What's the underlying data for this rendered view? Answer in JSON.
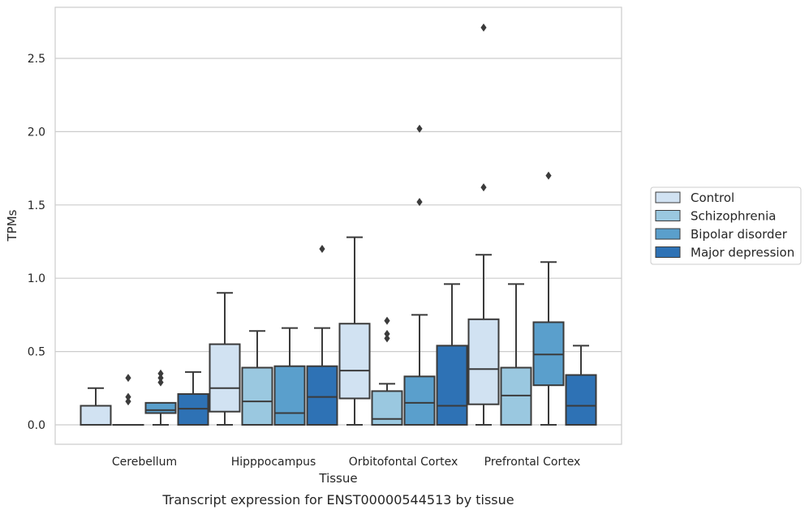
{
  "caption": "Transcript expression for ENST00000544513 by tissue",
  "chart_data": {
    "type": "box",
    "xlabel": "Tissue",
    "ylabel": "TPMs",
    "ylim": [
      -0.13,
      2.86
    ],
    "yticks": [
      0.0,
      0.5,
      1.0,
      1.5,
      2.0,
      2.5
    ],
    "ytick_labels": [
      "0.0",
      "0.5",
      "1.0",
      "1.5",
      "2.0",
      "2.5"
    ],
    "grid": "horizontal",
    "legend_position": "right",
    "categories": [
      "Cerebellum",
      "Hipppocampus",
      "Orbitofontal Cortex",
      "Prefrontal Cortex"
    ],
    "series": [
      {
        "name": "Control",
        "color": "#d1e2f2",
        "boxes": [
          {
            "min": 0.0,
            "q1": 0.0,
            "median": 0.0,
            "q3": 0.13,
            "max": 0.25,
            "outliers": []
          },
          {
            "min": 0.0,
            "q1": 0.09,
            "median": 0.25,
            "q3": 0.55,
            "max": 0.9,
            "outliers": []
          },
          {
            "min": 0.0,
            "q1": 0.18,
            "median": 0.37,
            "q3": 0.69,
            "max": 1.28,
            "outliers": []
          },
          {
            "min": 0.0,
            "q1": 0.14,
            "median": 0.38,
            "q3": 0.72,
            "max": 1.16,
            "outliers": [
              1.62,
              2.71
            ]
          }
        ]
      },
      {
        "name": "Schizophrenia",
        "color": "#9ac8e0",
        "boxes": [
          {
            "min": 0.0,
            "q1": 0.0,
            "median": 0.0,
            "q3": 0.0,
            "max": 0.0,
            "outliers": [
              0.16,
              0.19,
              0.32
            ]
          },
          {
            "min": 0.0,
            "q1": 0.0,
            "median": 0.16,
            "q3": 0.39,
            "max": 0.64,
            "outliers": []
          },
          {
            "min": 0.0,
            "q1": 0.0,
            "median": 0.04,
            "q3": 0.23,
            "max": 0.28,
            "outliers": [
              0.59,
              0.62,
              0.71
            ]
          },
          {
            "min": 0.0,
            "q1": 0.0,
            "median": 0.2,
            "q3": 0.39,
            "max": 0.96,
            "outliers": []
          }
        ]
      },
      {
        "name": "Bipolar disorder",
        "color": "#5a9fcc",
        "boxes": [
          {
            "min": 0.0,
            "q1": 0.08,
            "median": 0.1,
            "q3": 0.15,
            "max": 0.15,
            "outliers": [
              0.29,
              0.32,
              0.35
            ]
          },
          {
            "min": 0.0,
            "q1": 0.0,
            "median": 0.08,
            "q3": 0.4,
            "max": 0.66,
            "outliers": []
          },
          {
            "min": 0.0,
            "q1": 0.0,
            "median": 0.15,
            "q3": 0.33,
            "max": 0.75,
            "outliers": [
              1.52,
              2.02
            ]
          },
          {
            "min": 0.0,
            "q1": 0.27,
            "median": 0.48,
            "q3": 0.7,
            "max": 1.11,
            "outliers": [
              1.7
            ]
          }
        ]
      },
      {
        "name": "Major depression",
        "color": "#2e72b5",
        "boxes": [
          {
            "min": 0.0,
            "q1": 0.0,
            "median": 0.11,
            "q3": 0.21,
            "max": 0.36,
            "outliers": []
          },
          {
            "min": 0.0,
            "q1": 0.0,
            "median": 0.19,
            "q3": 0.4,
            "max": 0.66,
            "outliers": [
              1.2
            ]
          },
          {
            "min": 0.0,
            "q1": 0.0,
            "median": 0.13,
            "q3": 0.54,
            "max": 0.96,
            "outliers": []
          },
          {
            "min": 0.0,
            "q1": 0.0,
            "median": 0.13,
            "q3": 0.34,
            "max": 0.54,
            "outliers": []
          }
        ]
      }
    ]
  }
}
